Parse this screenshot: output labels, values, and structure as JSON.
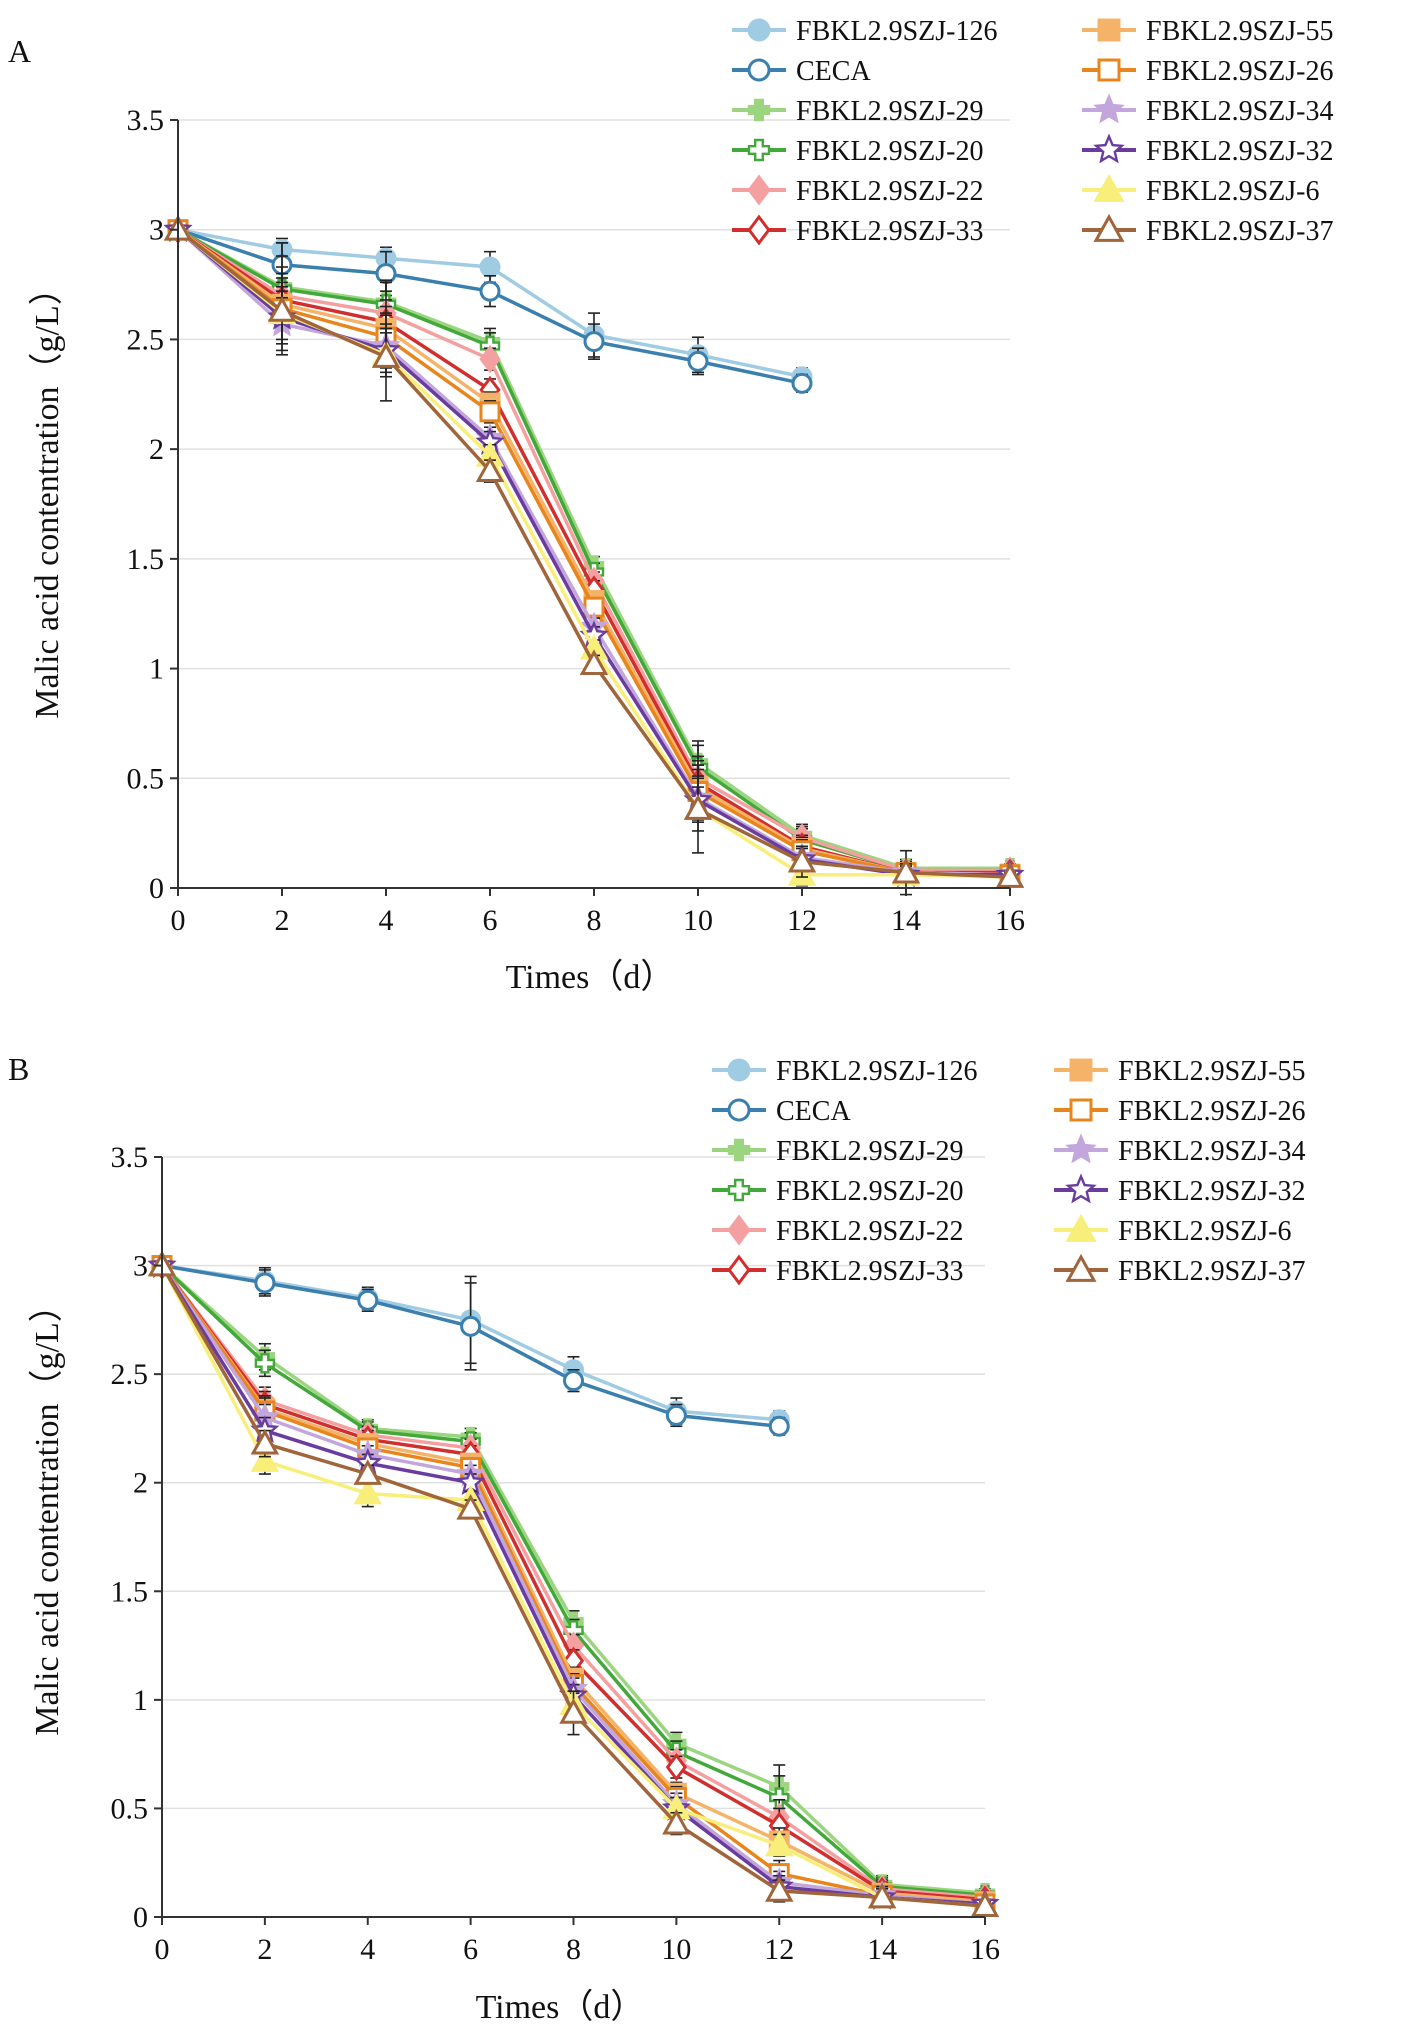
{
  "chart_data": [
    {
      "panel": "A",
      "type": "line",
      "xlabel": "Times（d）",
      "ylabel": "Malic acid contentration（g/L）",
      "xlim": [
        0,
        16
      ],
      "ylim": [
        0,
        3.5
      ],
      "xticks": [
        "0",
        "2",
        "4",
        "6",
        "8",
        "10",
        "12",
        "14",
        "16"
      ],
      "yticks": [
        "0",
        "0.5",
        "1",
        "1.5",
        "2",
        "2.5",
        "3",
        "3.5"
      ],
      "grid": "horizontal",
      "legend": "top-right",
      "series": [
        {
          "name": "FBKL2.9SZJ-126",
          "color": "#9fcbe3",
          "marker": "circle",
          "filled": true,
          "x": [
            0,
            2,
            4,
            6,
            8,
            10,
            12
          ],
          "values": [
            3.0,
            2.91,
            2.87,
            2.83,
            2.52,
            2.43,
            2.33
          ],
          "err": [
            0,
            0.05,
            0.05,
            0.07,
            0.1,
            0.08,
            0.04
          ]
        },
        {
          "name": "CECA",
          "color": "#3a7fae",
          "marker": "circle",
          "filled": false,
          "x": [
            0,
            2,
            4,
            6,
            8,
            10,
            12
          ],
          "values": [
            3.0,
            2.84,
            2.8,
            2.72,
            2.49,
            2.4,
            2.3
          ],
          "err": [
            0,
            0.1,
            0.1,
            0.07,
            0.08,
            0.06,
            0.04
          ]
        },
        {
          "name": "FBKL2.9SZJ-29",
          "color": "#9bd57f",
          "marker": "plus",
          "filled": true,
          "x": [
            0,
            2,
            4,
            6,
            8,
            10,
            12,
            14,
            16
          ],
          "values": [
            3.0,
            2.74,
            2.67,
            2.49,
            1.47,
            0.57,
            0.24,
            0.09,
            0.09
          ],
          "err": [
            0,
            0.2,
            0.1,
            0.06,
            0.04,
            0.1,
            0.05,
            0.04,
            0.02
          ]
        },
        {
          "name": "FBKL2.9SZJ-20",
          "color": "#43a83a",
          "marker": "plus",
          "filled": false,
          "x": [
            0,
            2,
            4,
            6,
            8,
            10,
            12,
            14,
            16
          ],
          "values": [
            3.0,
            2.73,
            2.66,
            2.47,
            1.44,
            0.55,
            0.22,
            0.08,
            0.08
          ],
          "err": [
            0,
            0.15,
            0.1,
            0.06,
            0.04,
            0.1,
            0.05,
            0.04,
            0.02
          ]
        },
        {
          "name": "FBKL2.9SZJ-22",
          "color": "#f4a0a0",
          "marker": "diamond",
          "filled": true,
          "x": [
            0,
            2,
            4,
            6,
            8,
            10,
            12,
            14,
            16
          ],
          "values": [
            3.0,
            2.7,
            2.62,
            2.41,
            1.4,
            0.5,
            0.23,
            0.08,
            0.08
          ],
          "err": [
            0,
            0.1,
            0.1,
            0.05,
            0.04,
            0.1,
            0.05,
            0.04,
            0.02
          ]
        },
        {
          "name": "FBKL2.9SZJ-33",
          "color": "#d12e2e",
          "marker": "diamond",
          "filled": false,
          "x": [
            0,
            2,
            4,
            6,
            8,
            10,
            12,
            14,
            16
          ],
          "values": [
            3.0,
            2.68,
            2.58,
            2.27,
            1.36,
            0.48,
            0.19,
            0.07,
            0.07
          ],
          "err": [
            0,
            0.1,
            0.1,
            0.05,
            0.04,
            0.1,
            0.05,
            0.04,
            0.02
          ]
        },
        {
          "name": "FBKL2.9SZJ-55",
          "color": "#f5b36a",
          "marker": "square",
          "filled": true,
          "x": [
            0,
            2,
            4,
            6,
            8,
            10,
            12,
            14,
            16
          ],
          "values": [
            3.0,
            2.66,
            2.55,
            2.21,
            1.31,
            0.46,
            0.18,
            0.07,
            0.06
          ],
          "err": [
            0,
            0.1,
            0.1,
            0.05,
            0.04,
            0.1,
            0.05,
            0.04,
            0.02
          ]
        },
        {
          "name": "FBKL2.9SZJ-26",
          "color": "#e8851c",
          "marker": "square",
          "filled": false,
          "x": [
            0,
            2,
            4,
            6,
            8,
            10,
            12,
            14,
            16
          ],
          "values": [
            3.0,
            2.64,
            2.51,
            2.17,
            1.28,
            0.44,
            0.17,
            0.07,
            0.06
          ],
          "err": [
            0,
            0.1,
            0.1,
            0.05,
            0.04,
            0.1,
            0.05,
            0.04,
            0.02
          ]
        },
        {
          "name": "FBKL2.9SZJ-34",
          "color": "#c3a6db",
          "marker": "star",
          "filled": true,
          "x": [
            0,
            2,
            4,
            6,
            8,
            10,
            12,
            14,
            16
          ],
          "values": [
            3.0,
            2.57,
            2.47,
            2.05,
            1.19,
            0.41,
            0.14,
            0.07,
            0.06
          ],
          "err": [
            0,
            0.12,
            0.1,
            0.05,
            0.04,
            0.1,
            0.05,
            0.04,
            0.02
          ]
        },
        {
          "name": "FBKL2.9SZJ-32",
          "color": "#6a3c9e",
          "marker": "star",
          "filled": false,
          "x": [
            0,
            2,
            4,
            6,
            8,
            10,
            12,
            14,
            16
          ],
          "values": [
            3.0,
            2.6,
            2.45,
            2.03,
            1.15,
            0.4,
            0.13,
            0.06,
            0.06
          ],
          "err": [
            0,
            0.12,
            0.1,
            0.05,
            0.04,
            0.1,
            0.05,
            0.04,
            0.02
          ]
        },
        {
          "name": "FBKL2.9SZJ-6",
          "color": "#f7ef7a",
          "marker": "triangle",
          "filled": true,
          "x": [
            0,
            2,
            4,
            6,
            8,
            10,
            12,
            14,
            16
          ],
          "values": [
            3.0,
            2.62,
            2.43,
            1.97,
            1.09,
            0.36,
            0.06,
            0.06,
            0.05
          ],
          "err": [
            0,
            0.12,
            0.1,
            0.05,
            0.04,
            0.1,
            0.05,
            0.04,
            0.02
          ]
        },
        {
          "name": "FBKL2.9SZJ-37",
          "color": "#a0653a",
          "marker": "triangle",
          "filled": false,
          "x": [
            0,
            2,
            4,
            6,
            8,
            10,
            12,
            14,
            16
          ],
          "values": [
            3.0,
            2.63,
            2.42,
            1.9,
            1.02,
            0.36,
            0.12,
            0.07,
            0.05
          ],
          "err": [
            0,
            0.2,
            0.2,
            0.05,
            0.04,
            0.2,
            0.07,
            0.1,
            0.02
          ]
        }
      ]
    },
    {
      "panel": "B",
      "type": "line",
      "xlabel": "Times（d）",
      "ylabel": "Malic acid contentration（g/L）",
      "xlim": [
        0,
        16
      ],
      "ylim": [
        0,
        3.5
      ],
      "xticks": [
        "0",
        "2",
        "4",
        "6",
        "8",
        "10",
        "12",
        "14",
        "16"
      ],
      "yticks": [
        "0",
        "0.5",
        "1",
        "1.5",
        "2",
        "2.5",
        "3",
        "3.5"
      ],
      "grid": "horizontal",
      "legend": "top-right",
      "series": [
        {
          "name": "FBKL2.9SZJ-126",
          "color": "#9fcbe3",
          "marker": "circle",
          "filled": true,
          "x": [
            0,
            2,
            4,
            6,
            8,
            10,
            12
          ],
          "values": [
            3.0,
            2.93,
            2.85,
            2.75,
            2.52,
            2.33,
            2.29
          ],
          "err": [
            0,
            0.06,
            0.05,
            0.2,
            0.06,
            0.06,
            0.04
          ]
        },
        {
          "name": "CECA",
          "color": "#3a7fae",
          "marker": "circle",
          "filled": false,
          "x": [
            0,
            2,
            4,
            6,
            8,
            10,
            12
          ],
          "values": [
            3.0,
            2.92,
            2.84,
            2.72,
            2.47,
            2.31,
            2.26
          ],
          "err": [
            0,
            0.06,
            0.05,
            0.2,
            0.05,
            0.05,
            0.04
          ]
        },
        {
          "name": "FBKL2.9SZJ-29",
          "color": "#9bd57f",
          "marker": "plus",
          "filled": true,
          "x": [
            0,
            2,
            4,
            6,
            8,
            10,
            12,
            14,
            16
          ],
          "values": [
            3.0,
            2.58,
            2.25,
            2.21,
            1.36,
            0.8,
            0.6,
            0.15,
            0.11
          ],
          "err": [
            0,
            0.06,
            0.04,
            0.04,
            0.05,
            0.05,
            0.1,
            0.04,
            0.02
          ]
        },
        {
          "name": "FBKL2.9SZJ-20",
          "color": "#43a83a",
          "marker": "plus",
          "filled": false,
          "x": [
            0,
            2,
            4,
            6,
            8,
            10,
            12,
            14,
            16
          ],
          "values": [
            3.0,
            2.55,
            2.24,
            2.19,
            1.32,
            0.76,
            0.55,
            0.14,
            0.1
          ],
          "err": [
            0,
            0.06,
            0.04,
            0.04,
            0.05,
            0.05,
            0.1,
            0.04,
            0.02
          ]
        },
        {
          "name": "FBKL2.9SZJ-22",
          "color": "#f4a0a0",
          "marker": "diamond",
          "filled": true,
          "x": [
            0,
            2,
            4,
            6,
            8,
            10,
            12,
            14,
            16
          ],
          "values": [
            3.0,
            2.38,
            2.22,
            2.16,
            1.25,
            0.72,
            0.46,
            0.13,
            0.09
          ],
          "err": [
            0,
            0.06,
            0.04,
            0.04,
            0.05,
            0.05,
            0.08,
            0.04,
            0.02
          ]
        },
        {
          "name": "FBKL2.9SZJ-33",
          "color": "#d12e2e",
          "marker": "diamond",
          "filled": false,
          "x": [
            0,
            2,
            4,
            6,
            8,
            10,
            12,
            14,
            16
          ],
          "values": [
            3.0,
            2.36,
            2.2,
            2.13,
            1.18,
            0.69,
            0.42,
            0.12,
            0.08
          ],
          "err": [
            0,
            0.06,
            0.04,
            0.04,
            0.05,
            0.05,
            0.08,
            0.04,
            0.02
          ]
        },
        {
          "name": "FBKL2.9SZJ-55",
          "color": "#f5b36a",
          "marker": "square",
          "filled": true,
          "x": [
            0,
            2,
            4,
            6,
            8,
            10,
            12,
            14,
            16
          ],
          "values": [
            3.0,
            2.34,
            2.18,
            2.09,
            1.1,
            0.57,
            0.35,
            0.11,
            0.07
          ],
          "err": [
            0,
            0.06,
            0.04,
            0.04,
            0.05,
            0.05,
            0.06,
            0.04,
            0.02
          ]
        },
        {
          "name": "FBKL2.9SZJ-26",
          "color": "#e8851c",
          "marker": "square",
          "filled": false,
          "x": [
            0,
            2,
            4,
            6,
            8,
            10,
            12,
            14,
            16
          ],
          "values": [
            3.0,
            2.33,
            2.16,
            2.07,
            1.07,
            0.55,
            0.2,
            0.1,
            0.06
          ],
          "err": [
            0,
            0.06,
            0.04,
            0.04,
            0.05,
            0.05,
            0.06,
            0.04,
            0.02
          ]
        },
        {
          "name": "FBKL2.9SZJ-34",
          "color": "#c3a6db",
          "marker": "star",
          "filled": true,
          "x": [
            0,
            2,
            4,
            6,
            8,
            10,
            12,
            14,
            16
          ],
          "values": [
            3.0,
            2.3,
            2.13,
            2.04,
            1.05,
            0.52,
            0.16,
            0.1,
            0.06
          ],
          "err": [
            0,
            0.06,
            0.04,
            0.04,
            0.05,
            0.05,
            0.05,
            0.04,
            0.02
          ]
        },
        {
          "name": "FBKL2.9SZJ-32",
          "color": "#6a3c9e",
          "marker": "star",
          "filled": false,
          "x": [
            0,
            2,
            4,
            6,
            8,
            10,
            12,
            14,
            16
          ],
          "values": [
            3.0,
            2.24,
            2.09,
            2.0,
            1.02,
            0.5,
            0.14,
            0.09,
            0.06
          ],
          "err": [
            0,
            0.06,
            0.04,
            0.04,
            0.05,
            0.05,
            0.05,
            0.04,
            0.02
          ]
        },
        {
          "name": "FBKL2.9SZJ-6",
          "color": "#f7ef7a",
          "marker": "triangle",
          "filled": true,
          "x": [
            0,
            2,
            4,
            6,
            8,
            10,
            12,
            14,
            16
          ],
          "values": [
            3.0,
            2.1,
            1.95,
            1.92,
            0.98,
            0.5,
            0.33,
            0.09,
            0.05
          ],
          "err": [
            0,
            0.06,
            0.06,
            0.04,
            0.05,
            0.05,
            0.05,
            0.04,
            0.02
          ]
        },
        {
          "name": "FBKL2.9SZJ-37",
          "color": "#a0653a",
          "marker": "triangle",
          "filled": false,
          "x": [
            0,
            2,
            4,
            6,
            8,
            10,
            12,
            14,
            16
          ],
          "values": [
            3.0,
            2.18,
            2.04,
            1.88,
            0.94,
            0.43,
            0.12,
            0.09,
            0.05
          ],
          "err": [
            0,
            0.06,
            0.04,
            0.04,
            0.1,
            0.05,
            0.05,
            0.04,
            0.02
          ]
        }
      ]
    }
  ]
}
